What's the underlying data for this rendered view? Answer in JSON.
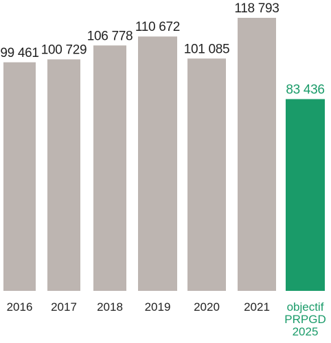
{
  "chart_data": {
    "type": "bar",
    "categories": [
      "2016",
      "2017",
      "2018",
      "2019",
      "2020",
      "2021",
      "objectif PRPGD 2025"
    ],
    "category_lines": [
      [
        "2016"
      ],
      [
        "2017"
      ],
      [
        "2018"
      ],
      [
        "2019"
      ],
      [
        "2020"
      ],
      [
        "2021"
      ],
      [
        "objectif",
        "PRPGD",
        "2025"
      ]
    ],
    "values": [
      99461,
      100729,
      106778,
      110672,
      101085,
      118793,
      83436
    ],
    "value_labels": [
      "99 461",
      "100 729",
      "106 778",
      "110 672",
      "101 085",
      "118 793",
      "83 436"
    ],
    "colors": [
      "#bdb5b1",
      "#bdb5b1",
      "#bdb5b1",
      "#bdb5b1",
      "#bdb5b1",
      "#bdb5b1",
      "#1a9b69"
    ],
    "label_colors": [
      "#222222",
      "#222222",
      "#222222",
      "#222222",
      "#222222",
      "#222222",
      "#1a9b69"
    ],
    "title": "",
    "xlabel": "",
    "ylabel": "",
    "grid": false,
    "legend": "none"
  }
}
